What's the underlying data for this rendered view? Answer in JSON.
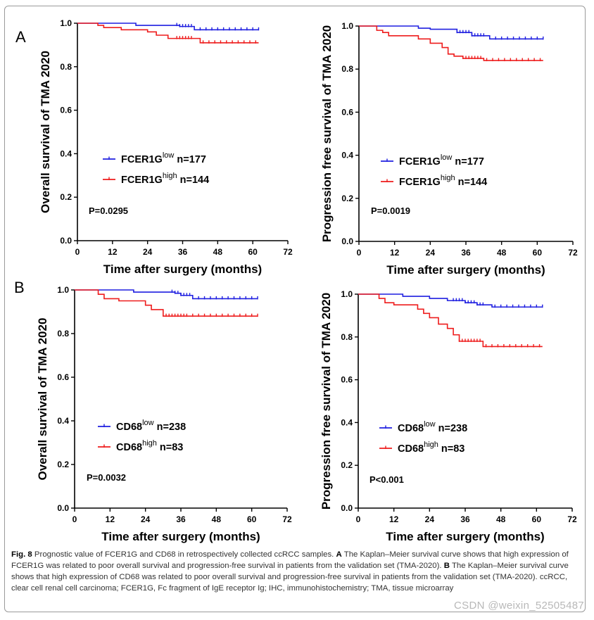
{
  "chart_data": [
    {
      "type": "line",
      "panel": "A",
      "ylabel": "Overall survival of TMA 2020",
      "xlabel": "Time after surgery (months)",
      "xlim": [
        0,
        72
      ],
      "xticks": [
        0,
        12,
        24,
        36,
        48,
        60,
        72
      ],
      "ylim": [
        0,
        1.0
      ],
      "yticks": [
        "0.0",
        "0.2",
        "0.4",
        "0.6",
        "0.8",
        "1.0"
      ],
      "pvalue": "P=0.0295",
      "series": [
        {
          "name": "FCER1G",
          "sup": "low",
          "n": "n=177",
          "color": "#1f1fe0",
          "x": [
            0,
            20,
            35,
            40,
            62
          ],
          "y": [
            1.0,
            0.99,
            0.985,
            0.97,
            0.97
          ],
          "censor": [
            34,
            35,
            36,
            37,
            38,
            39,
            42,
            44,
            46,
            48,
            50,
            52,
            54,
            56,
            58,
            60,
            62
          ]
        },
        {
          "name": "FCER1G",
          "sup": "high",
          "n": "n=144",
          "color": "#ee1c1c",
          "x": [
            0,
            7,
            9,
            15,
            24,
            27,
            31,
            42,
            62
          ],
          "y": [
            1.0,
            0.99,
            0.98,
            0.97,
            0.96,
            0.945,
            0.93,
            0.91,
            0.91
          ],
          "censor": [
            34,
            35,
            36,
            37,
            38,
            39,
            43,
            45,
            47,
            49,
            51,
            53,
            55,
            57,
            59,
            61
          ]
        }
      ]
    },
    {
      "type": "line",
      "panel": "",
      "ylabel": "Progression free survival of TMA 2020",
      "xlabel": "Time after surgery (months)",
      "xlim": [
        0,
        72
      ],
      "xticks": [
        0,
        12,
        24,
        36,
        48,
        60,
        72
      ],
      "ylim": [
        0,
        1.0
      ],
      "yticks": [
        "0.0",
        "0.2",
        "0.4",
        "0.6",
        "0.8",
        "1.0"
      ],
      "pvalue": "P=0.0019",
      "series": [
        {
          "name": "FCER1G",
          "sup": "low",
          "n": "n=177",
          "color": "#1f1fe0",
          "x": [
            0,
            20,
            24,
            33,
            38,
            44,
            62
          ],
          "y": [
            1.0,
            0.99,
            0.985,
            0.97,
            0.955,
            0.94,
            0.94
          ],
          "censor": [
            33,
            34,
            35,
            36,
            37,
            38,
            39,
            40,
            41,
            42,
            46,
            48,
            50,
            52,
            54,
            56,
            58,
            60,
            62
          ]
        },
        {
          "name": "FCER1G",
          "sup": "high",
          "n": "n=144",
          "color": "#ee1c1c",
          "x": [
            0,
            6,
            8,
            10,
            20,
            24,
            28,
            30,
            32,
            35,
            42,
            62
          ],
          "y": [
            1.0,
            0.98,
            0.97,
            0.955,
            0.94,
            0.92,
            0.9,
            0.87,
            0.86,
            0.85,
            0.84,
            0.84
          ],
          "censor": [
            35,
            36,
            37,
            38,
            39,
            40,
            41,
            43,
            45,
            47,
            49,
            51,
            53,
            55,
            57,
            59,
            61
          ]
        }
      ]
    },
    {
      "type": "line",
      "panel": "B",
      "ylabel": "Overall survival of TMA 2020",
      "xlabel": "Time after surgery (months)",
      "xlim": [
        0,
        72
      ],
      "xticks": [
        0,
        12,
        24,
        36,
        48,
        60,
        72
      ],
      "ylim": [
        0,
        1.0
      ],
      "yticks": [
        "0.0",
        "0.2",
        "0.4",
        "0.6",
        "0.8",
        "1.0"
      ],
      "pvalue": "P=0.0032",
      "series": [
        {
          "name": "CD68",
          "sup": "low",
          "n": "n=238",
          "color": "#1f1fe0",
          "x": [
            0,
            20,
            34,
            36,
            40,
            62
          ],
          "y": [
            1.0,
            0.99,
            0.985,
            0.975,
            0.96,
            0.96
          ],
          "censor": [
            33,
            34,
            35,
            36,
            37,
            38,
            39,
            42,
            44,
            46,
            48,
            50,
            52,
            54,
            56,
            58,
            60,
            62
          ]
        },
        {
          "name": "CD68",
          "sup": "high",
          "n": "n=83",
          "color": "#ee1c1c",
          "x": [
            0,
            8,
            10,
            15,
            24,
            26,
            30,
            62
          ],
          "y": [
            1.0,
            0.98,
            0.96,
            0.95,
            0.93,
            0.91,
            0.88,
            0.88
          ],
          "censor": [
            31,
            32,
            33,
            34,
            35,
            36,
            37,
            38,
            40,
            42,
            44,
            46,
            48,
            50,
            52,
            54,
            56,
            58,
            60,
            62
          ]
        }
      ]
    },
    {
      "type": "line",
      "panel": "",
      "ylabel": "Progression free survival of TMA 2020",
      "xlabel": "Time after surgery (months)",
      "xlim": [
        0,
        72
      ],
      "xticks": [
        0,
        12,
        24,
        36,
        48,
        60,
        72
      ],
      "ylim": [
        0,
        1.0
      ],
      "yticks": [
        "0.0",
        "0.2",
        "0.4",
        "0.6",
        "0.8",
        "1.0"
      ],
      "pvalue": "P<0.001",
      "series": [
        {
          "name": "CD68",
          "sup": "low",
          "n": "n=238",
          "color": "#1f1fe0",
          "x": [
            0,
            15,
            24,
            30,
            36,
            40,
            45,
            62
          ],
          "y": [
            1.0,
            0.99,
            0.98,
            0.97,
            0.96,
            0.95,
            0.94,
            0.94
          ],
          "censor": [
            32,
            33,
            34,
            35,
            36,
            37,
            38,
            39,
            40,
            41,
            42,
            46,
            48,
            50,
            52,
            54,
            56,
            58,
            60,
            62
          ]
        },
        {
          "name": "CD68",
          "sup": "high",
          "n": "n=83",
          "color": "#ee1c1c",
          "x": [
            0,
            7,
            9,
            12,
            20,
            22,
            24,
            27,
            30,
            32,
            34,
            42,
            62
          ],
          "y": [
            1.0,
            0.98,
            0.96,
            0.95,
            0.93,
            0.91,
            0.89,
            0.86,
            0.84,
            0.81,
            0.78,
            0.755,
            0.755
          ],
          "censor": [
            34,
            35,
            36,
            37,
            38,
            39,
            40,
            41,
            43,
            45,
            47,
            49,
            51,
            53,
            55,
            57,
            59,
            61
          ]
        }
      ]
    }
  ],
  "caption": {
    "fig_label": "Fig. 8",
    "title": "Prognostic value of FCER1G and CD68 in retrospectively collected ccRCC samples.",
    "a_label": "A",
    "a_text": "The Kaplan–Meier survival curve shows that high expression of FCER1G was related to poor overall survival and progression-free survival in patients from the validation set (TMA-2020).",
    "b_label": "B",
    "b_text": "The Kaplan–Meier survival curve shows that high expression of CD68 was related to poor overall survival and progression-free survival in patients from the validation set (TMA-2020). ccRCC, clear cell renal cell carcinoma; FCER1G, Fc fragment of IgE receptor Ig; IHC, immunohistochemistry; TMA, tissue microarray"
  },
  "watermark": "CSDN @weixin_52505487"
}
